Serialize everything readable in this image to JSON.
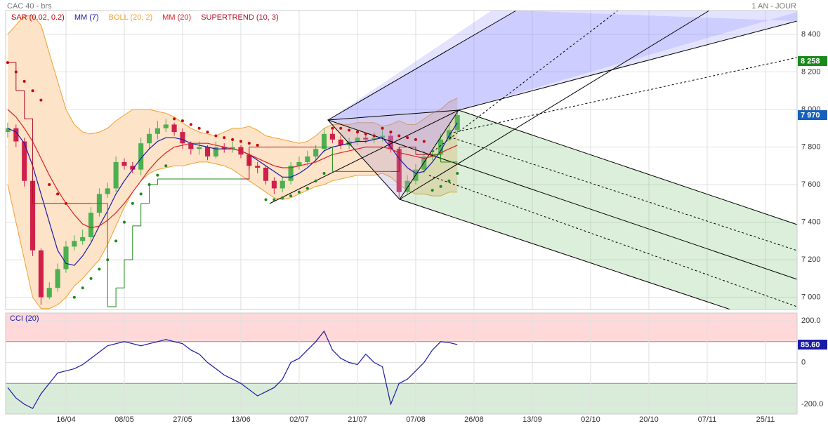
{
  "chart_data": [
    {
      "type": "candlestick",
      "title": "CAC 40 - brs",
      "period": "1 AN - JOUR",
      "xlim": [
        -0.25,
        94.8
      ],
      "xticks": [
        {
          "value": 7,
          "label": "16/04"
        },
        {
          "value": 14,
          "label": "08/05"
        },
        {
          "value": 21,
          "label": "27/05"
        },
        {
          "value": 28,
          "label": "13/06"
        },
        {
          "value": 35,
          "label": "02/07"
        },
        {
          "value": 42,
          "label": "21/07"
        },
        {
          "value": 49,
          "label": "07/08"
        },
        {
          "value": 56,
          "label": "26/08"
        },
        {
          "value": 63,
          "label": "13/09"
        },
        {
          "value": 70,
          "label": "02/10"
        },
        {
          "value": 77,
          "label": "20/10"
        },
        {
          "value": 84,
          "label": "07/11"
        },
        {
          "value": 91,
          "label": "25/11"
        }
      ],
      "ylim": [
        6935,
        8527
      ],
      "yticks": [
        {
          "value": 7000,
          "label": "7 000"
        },
        {
          "value": 7200,
          "label": "7 200"
        },
        {
          "value": 7400,
          "label": "7 400"
        },
        {
          "value": 7600,
          "label": "7 600"
        },
        {
          "value": 7800,
          "label": "7 800"
        },
        {
          "value": 8000,
          "label": "8 000"
        },
        {
          "value": 8200,
          "label": "8 200"
        },
        {
          "value": 8400,
          "label": "8 400"
        }
      ],
      "grid": true,
      "up_color": "#4caf50",
      "down_color": "#d0204a",
      "open": [
        7880,
        7900,
        7830,
        7620,
        7250,
        7000,
        7050,
        7150,
        7270,
        7300,
        7320,
        7450,
        7550,
        7580,
        7720,
        7700,
        7680,
        7820,
        7870,
        7900,
        7920,
        7880,
        7820,
        7790,
        7800,
        7750,
        7800,
        7790,
        7800,
        7760,
        7700,
        7690,
        7620,
        7580,
        7620,
        7700,
        7720,
        7750,
        7790,
        7870,
        7840,
        7810,
        7830,
        7850,
        7840,
        7850,
        7860,
        7790,
        7560,
        7620,
        7680,
        7750,
        7760,
        7840,
        7890
      ],
      "high": [
        7930,
        7920,
        7850,
        7640,
        7260,
        7080,
        7180,
        7300,
        7330,
        7360,
        7480,
        7580,
        7610,
        7750,
        7740,
        7720,
        7850,
        7900,
        7940,
        7950,
        7930,
        7900,
        7830,
        7830,
        7810,
        7830,
        7820,
        7830,
        7810,
        7770,
        7720,
        7700,
        7640,
        7640,
        7720,
        7750,
        7780,
        7810,
        7900,
        7890,
        7860,
        7850,
        7880,
        7870,
        7880,
        7900,
        7880,
        7800,
        7650,
        7710,
        7780,
        7790,
        7870,
        7920,
        7990
      ],
      "low": [
        7850,
        7800,
        7590,
        7220,
        6960,
        6990,
        7030,
        7130,
        7250,
        7280,
        7300,
        7430,
        7530,
        7560,
        7680,
        7660,
        7650,
        7790,
        7840,
        7880,
        7860,
        7790,
        7760,
        7760,
        7730,
        7740,
        7770,
        7770,
        7740,
        7680,
        7660,
        7600,
        7550,
        7560,
        7600,
        7680,
        7700,
        7730,
        7770,
        7820,
        7790,
        7790,
        7810,
        7820,
        7820,
        7830,
        7770,
        7530,
        7550,
        7600,
        7660,
        7730,
        7740,
        7830,
        7880
      ],
      "close": [
        7900,
        7830,
        7620,
        7250,
        7000,
        7050,
        7150,
        7270,
        7300,
        7320,
        7450,
        7550,
        7580,
        7720,
        7700,
        7680,
        7820,
        7870,
        7900,
        7920,
        7880,
        7820,
        7790,
        7800,
        7750,
        7800,
        7790,
        7800,
        7760,
        7700,
        7690,
        7620,
        7580,
        7620,
        7700,
        7720,
        7750,
        7790,
        7870,
        7840,
        7810,
        7830,
        7850,
        7840,
        7850,
        7860,
        7790,
        7560,
        7620,
        7680,
        7750,
        7760,
        7840,
        7890,
        7970
      ],
      "series": [
        {
          "name": "SAR (0.02, 0.2)",
          "color": "#cc0000",
          "style": "dots",
          "up_color": "#1a8a1a",
          "values": [
            8250,
            8200,
            8150,
            8100,
            8050,
            7600,
            7550,
            7500,
            7000,
            7050,
            7100,
            7150,
            7200,
            7300,
            7400,
            7500,
            7550,
            7600,
            7650,
            7700,
            7950,
            7940,
            7920,
            7900,
            7880,
            7860,
            7850,
            7840,
            7830,
            7820,
            7810,
            7520,
            7520,
            7530,
            7540,
            7560,
            7580,
            7620,
            7660,
            7900,
            7900,
            7890,
            7880,
            7870,
            7860,
            7900,
            7880,
            7860,
            7850,
            7840,
            7830,
            7570,
            7590,
            7620,
            7660
          ]
        },
        {
          "name": "MM (7)",
          "color": "#1a1aa6",
          "style": "line",
          "values": [
            7900,
            7880,
            7820,
            7700,
            7550,
            7400,
            7250,
            7180,
            7170,
            7220,
            7290,
            7380,
            7460,
            7550,
            7620,
            7680,
            7740,
            7790,
            7830,
            7850,
            7850,
            7840,
            7820,
            7810,
            7800,
            7790,
            7790,
            7790,
            7780,
            7760,
            7730,
            7700,
            7670,
            7640,
            7640,
            7660,
            7690,
            7730,
            7780,
            7800,
            7810,
            7820,
            7830,
            7830,
            7840,
            7850,
            7800,
            7740,
            7690,
            7660,
            7670,
            7720,
            7780,
            7860,
            7930
          ]
        },
        {
          "name": "BOLL (20, 2)",
          "color": "#f0a030",
          "style": "band",
          "fill": "#fde3c8",
          "upper": [
            8400,
            8450,
            8500,
            8500,
            8450,
            8300,
            8150,
            8000,
            7920,
            7880,
            7870,
            7880,
            7900,
            7940,
            7970,
            8000,
            8000,
            8000,
            7990,
            7980,
            7960,
            7930,
            7900,
            7880,
            7870,
            7860,
            7880,
            7900,
            7900,
            7910,
            7890,
            7860,
            7850,
            7840,
            7830,
            7820,
            7830,
            7860,
            7900,
            7920,
            7920,
            7920,
            7930,
            7930,
            7930,
            7910,
            7920,
            7940,
            7920,
            7920,
            7950,
            7980,
            8000,
            8040,
            8060
          ],
          "lower": [
            7600,
            7400,
            7200,
            7000,
            6940,
            6940,
            6960,
            7000,
            7060,
            7100,
            7150,
            7200,
            7280,
            7380,
            7480,
            7560,
            7620,
            7660,
            7680,
            7690,
            7700,
            7700,
            7710,
            7720,
            7720,
            7710,
            7700,
            7680,
            7650,
            7620,
            7590,
            7560,
            7530,
            7520,
            7530,
            7550,
            7570,
            7590,
            7600,
            7620,
            7630,
            7640,
            7650,
            7650,
            7650,
            7660,
            7640,
            7600,
            7570,
            7550,
            7550,
            7540,
            7540,
            7560,
            7560
          ]
        },
        {
          "name": "MM (20)",
          "color": "#dd2222",
          "style": "line",
          "values": [
            8000,
            7960,
            7900,
            7830,
            7740,
            7650,
            7570,
            7500,
            7440,
            7390,
            7370,
            7380,
            7410,
            7450,
            7500,
            7560,
            7620,
            7680,
            7730,
            7770,
            7800,
            7810,
            7820,
            7820,
            7820,
            7810,
            7800,
            7790,
            7780,
            7760,
            7740,
            7720,
            7700,
            7690,
            7690,
            7700,
            7710,
            7720,
            7740,
            7760,
            7770,
            7780,
            7790,
            7800,
            7800,
            7800,
            7790,
            7770,
            7760,
            7750,
            7740,
            7750,
            7770,
            7790,
            7810
          ]
        },
        {
          "name": "SUPERTREND (10, 3)",
          "color": "#b0102a",
          "style": "step",
          "up_color": "#1a8a1a",
          "values": [
            8250,
            8100,
            7950,
            7500,
            7500,
            7500,
            7500,
            7500,
            7500,
            7500,
            7500,
            7500,
            6950,
            7050,
            7200,
            7380,
            7500,
            7600,
            7630,
            7630,
            7630,
            7630,
            7630,
            7630,
            7630,
            7630,
            7630,
            7630,
            7630,
            7800,
            7800,
            7800,
            7800,
            7800,
            7800,
            7800,
            7800,
            7800,
            7800,
            7670,
            7670,
            7670,
            7670,
            7670,
            7670,
            7670,
            7670,
            7800,
            7800,
            7760,
            7760,
            7760,
            7720,
            7720,
            7720
          ]
        }
      ],
      "markers": [
        {
          "value": 8258,
          "label": "8 258",
          "color": "#1a8a1a"
        },
        {
          "value": 7970,
          "label": "7 970",
          "color": "#1560bd"
        }
      ]
    },
    {
      "type": "line",
      "title": "CCI (20)",
      "color": "#1a1aa6",
      "ylim": [
        -247,
        237
      ],
      "yticks": [
        {
          "value": -200,
          "label": "-200.0"
        },
        0,
        {
          "value": 200,
          "label": "200.0"
        }
      ],
      "overbought": 100,
      "oversold": -100,
      "values": [
        -120,
        -170,
        -200,
        -220,
        -150,
        -100,
        -50,
        -40,
        -30,
        -10,
        20,
        50,
        80,
        90,
        100,
        90,
        80,
        90,
        100,
        110,
        100,
        90,
        60,
        40,
        0,
        -30,
        -60,
        -80,
        -100,
        -130,
        -160,
        -140,
        -120,
        -80,
        0,
        20,
        60,
        100,
        150,
        60,
        20,
        0,
        -10,
        40,
        0,
        -20,
        -200,
        -100,
        -80,
        -40,
        0,
        60,
        100,
        95,
        86
      ],
      "last": {
        "value": 85.6,
        "label": "85.60"
      }
    }
  ]
}
